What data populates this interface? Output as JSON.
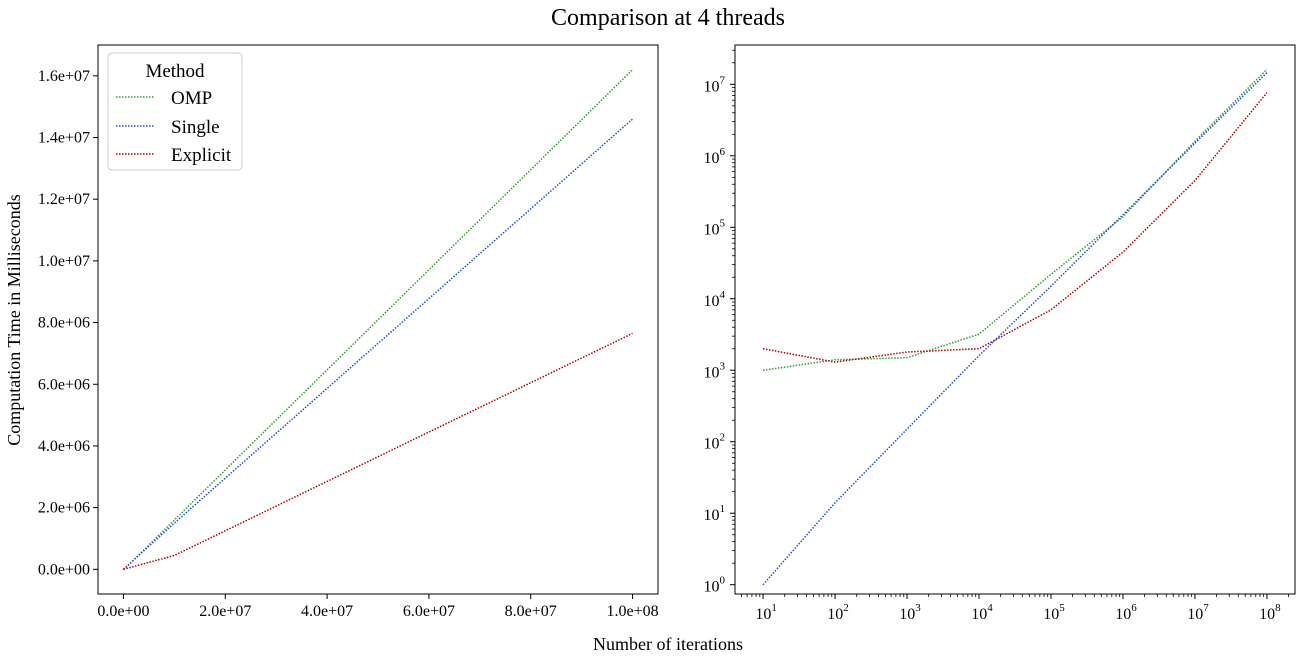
{
  "figure": {
    "suptitle": "Comparison at 4 threads",
    "supxlabel": "Number of iterations",
    "supylabel": "Computation Time in Milliseconds"
  },
  "colors": {
    "OMP": "#2ca02c",
    "Single": "#1f4fd6",
    "Explicit": "#b00000"
  },
  "chart_data": [
    {
      "type": "line",
      "scale": "linear",
      "x": [
        10,
        100,
        1000,
        10000,
        100000,
        1000000,
        10000000,
        100000000
      ],
      "xlim": [
        -5000000,
        105000000
      ],
      "ylim": [
        -800000,
        17000000
      ],
      "xticks": [
        0,
        20000000,
        40000000,
        60000000,
        80000000,
        100000000
      ],
      "xtick_labels": [
        "0.0e+00",
        "2.0e+07",
        "4.0e+07",
        "6.0e+07",
        "8.0e+07",
        "1.0e+08"
      ],
      "yticks": [
        0,
        2000000,
        4000000,
        6000000,
        8000000,
        10000000,
        12000000,
        14000000,
        16000000
      ],
      "ytick_labels": [
        "0.0e+00",
        "2.0e+06",
        "4.0e+06",
        "6.0e+06",
        "8.0e+06",
        "1.0e+07",
        "1.2e+07",
        "1.4e+07",
        "1.6e+07"
      ],
      "legend": {
        "title": "Method",
        "position": "upper-left"
      },
      "series": [
        {
          "name": "OMP",
          "values": [
            1000,
            1400,
            1500,
            3200,
            22000,
            140000,
            1600000,
            16200000
          ]
        },
        {
          "name": "Single",
          "values": [
            1,
            14,
            150,
            1600,
            15000,
            150000,
            1500000,
            14600000
          ]
        },
        {
          "name": "Explicit",
          "values": [
            2000,
            1300,
            1800,
            2000,
            7000,
            45000,
            450000,
            7650000
          ]
        }
      ]
    },
    {
      "type": "line",
      "scale": "log-log",
      "x": [
        10,
        100,
        1000,
        10000,
        100000,
        1000000,
        10000000,
        100000000
      ],
      "xlim_exp": [
        0.61,
        8.39
      ],
      "ylim_exp": [
        -0.13,
        7.55
      ],
      "xtick_labels": [
        {
          "base": "10",
          "exp": "1"
        },
        {
          "base": "10",
          "exp": "2"
        },
        {
          "base": "10",
          "exp": "3"
        },
        {
          "base": "10",
          "exp": "4"
        },
        {
          "base": "10",
          "exp": "5"
        },
        {
          "base": "10",
          "exp": "6"
        },
        {
          "base": "10",
          "exp": "7"
        },
        {
          "base": "10",
          "exp": "8"
        }
      ],
      "ytick_labels": [
        {
          "base": "10",
          "exp": "0"
        },
        {
          "base": "10",
          "exp": "1"
        },
        {
          "base": "10",
          "exp": "2"
        },
        {
          "base": "10",
          "exp": "3"
        },
        {
          "base": "10",
          "exp": "4"
        },
        {
          "base": "10",
          "exp": "5"
        },
        {
          "base": "10",
          "exp": "6"
        },
        {
          "base": "10",
          "exp": "7"
        }
      ],
      "series": [
        {
          "name": "OMP",
          "values": [
            1000,
            1400,
            1500,
            3200,
            22000,
            140000,
            1600000,
            16200000
          ]
        },
        {
          "name": "Single",
          "values": [
            1,
            14,
            150,
            1600,
            15000,
            150000,
            1500000,
            14600000
          ]
        },
        {
          "name": "Explicit",
          "values": [
            2000,
            1300,
            1800,
            2000,
            7000,
            45000,
            450000,
            7650000
          ]
        }
      ]
    }
  ]
}
